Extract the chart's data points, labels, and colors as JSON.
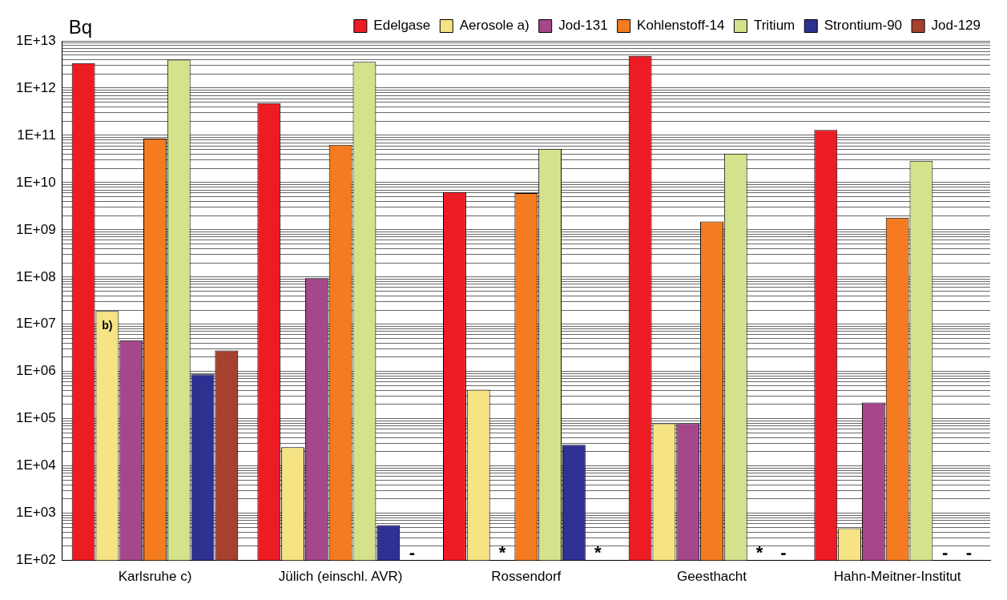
{
  "chart_data": {
    "type": "bar",
    "ylabel": "Bq",
    "log": true,
    "grid": "y",
    "legend": "top",
    "categories": [
      "Karlsruhe c)",
      "Jülich (einschl. AVR)",
      "Rossendorf",
      "Geesthacht",
      "Hahn-Meitner-Institut"
    ],
    "series": [
      {
        "name": "Edelgase",
        "color": "#ed1c24",
        "values": [
          3400000000000.0,
          480000000000.0,
          6300000000.0,
          4800000000000.0,
          130000000000.0
        ]
      },
      {
        "name": "Aerosole a)",
        "color": "#f5e384",
        "values": [
          19000000.0,
          25000.0,
          410000.0,
          80000.0,
          480
        ],
        "value_labels": [
          "b)",
          null,
          null,
          null,
          null
        ]
      },
      {
        "name": "Jod-131",
        "color": "#a5478a",
        "values": [
          4600000.0,
          95000000.0,
          null,
          80000.0,
          220000.0
        ],
        "value_labels": [
          null,
          null,
          "*",
          null,
          null
        ]
      },
      {
        "name": "Kohlenstoff-14",
        "color": "#f47b20",
        "values": [
          85000000000.0,
          63000000000.0,
          6000000000.0,
          1500000000.0,
          1800000000.0
        ]
      },
      {
        "name": "Tritium",
        "color": "#d4e28c",
        "values": [
          4000000000000.0,
          3600000000000.0,
          52000000000.0,
          41000000000.0,
          29000000000.0
        ]
      },
      {
        "name": "Strontium-90",
        "color": "#2e3192",
        "values": [
          870000.0,
          560,
          28000.0,
          null,
          null
        ],
        "value_labels": [
          null,
          null,
          null,
          "*",
          "-"
        ]
      },
      {
        "name": "Jod-129",
        "color": "#a6402f",
        "values": [
          2800000.0,
          null,
          null,
          null,
          null
        ],
        "value_labels": [
          null,
          "-",
          "*",
          "-",
          "-"
        ]
      }
    ],
    "ylim": [
      100,
      10000000000000.0
    ],
    "yticks": [
      {
        "value": 100,
        "label": "1E+02"
      },
      {
        "value": 200,
        "label": null
      },
      {
        "value": 300,
        "label": null
      },
      {
        "value": 400,
        "label": null
      },
      {
        "value": 500,
        "label": null
      },
      {
        "value": 600,
        "label": null
      },
      {
        "value": 700,
        "label": null
      },
      {
        "value": 800,
        "label": null
      },
      {
        "value": 900,
        "label": null
      },
      {
        "value": 1000,
        "label": "1E+03"
      },
      {
        "value": 2000,
        "label": null
      },
      {
        "value": 3000,
        "label": null
      },
      {
        "value": 4000,
        "label": null
      },
      {
        "value": 5000,
        "label": null
      },
      {
        "value": 6000,
        "label": null
      },
      {
        "value": 7000,
        "label": null
      },
      {
        "value": 8000,
        "label": null
      },
      {
        "value": 9000,
        "label": null
      },
      {
        "value": 10000.0,
        "label": "1E+04"
      },
      {
        "value": 20000.0,
        "label": null
      },
      {
        "value": 30000.0,
        "label": null
      },
      {
        "value": 40000.0,
        "label": null
      },
      {
        "value": 50000.0,
        "label": null
      },
      {
        "value": 60000.0,
        "label": null
      },
      {
        "value": 70000.0,
        "label": null
      },
      {
        "value": 80000.0,
        "label": null
      },
      {
        "value": 90000.0,
        "label": null
      },
      {
        "value": 100000.0,
        "label": "1E+05"
      },
      {
        "value": 200000.0,
        "label": null
      },
      {
        "value": 300000.0,
        "label": null
      },
      {
        "value": 400000.0,
        "label": null
      },
      {
        "value": 500000.0,
        "label": null
      },
      {
        "value": 600000.0,
        "label": null
      },
      {
        "value": 700000.0,
        "label": null
      },
      {
        "value": 800000.0,
        "label": null
      },
      {
        "value": 900000.0,
        "label": null
      },
      {
        "value": 1000000.0,
        "label": "1E+06"
      },
      {
        "value": 2000000.0,
        "label": null
      },
      {
        "value": 3000000.0,
        "label": null
      },
      {
        "value": 4000000.0,
        "label": null
      },
      {
        "value": 5000000.0,
        "label": null
      },
      {
        "value": 6000000.0,
        "label": null
      },
      {
        "value": 7000000.0,
        "label": null
      },
      {
        "value": 8000000.0,
        "label": null
      },
      {
        "value": 9000000.0,
        "label": null
      },
      {
        "value": 10000000.0,
        "label": "1E+07"
      },
      {
        "value": 20000000.0,
        "label": null
      },
      {
        "value": 30000000.0,
        "label": null
      },
      {
        "value": 40000000.0,
        "label": null
      },
      {
        "value": 50000000.0,
        "label": null
      },
      {
        "value": 60000000.0,
        "label": null
      },
      {
        "value": 70000000.0,
        "label": null
      },
      {
        "value": 80000000.0,
        "label": null
      },
      {
        "value": 90000000.0,
        "label": null
      },
      {
        "value": 100000000.0,
        "label": "1E+08"
      },
      {
        "value": 200000000.0,
        "label": null
      },
      {
        "value": 300000000.0,
        "label": null
      },
      {
        "value": 400000000.0,
        "label": null
      },
      {
        "value": 500000000.0,
        "label": null
      },
      {
        "value": 600000000.0,
        "label": null
      },
      {
        "value": 700000000.0,
        "label": null
      },
      {
        "value": 800000000.0,
        "label": null
      },
      {
        "value": 900000000.0,
        "label": null
      },
      {
        "value": 1000000000.0,
        "label": "1E+09"
      },
      {
        "value": 2000000000.0,
        "label": null
      },
      {
        "value": 3000000000.0,
        "label": null
      },
      {
        "value": 4000000000.0,
        "label": null
      },
      {
        "value": 5000000000.0,
        "label": null
      },
      {
        "value": 6000000000.0,
        "label": null
      },
      {
        "value": 7000000000.0,
        "label": null
      },
      {
        "value": 8000000000.0,
        "label": null
      },
      {
        "value": 9000000000.0,
        "label": null
      },
      {
        "value": 10000000000.0,
        "label": "1E+10"
      },
      {
        "value": 20000000000.0,
        "label": null
      },
      {
        "value": 30000000000.0,
        "label": null
      },
      {
        "value": 40000000000.0,
        "label": null
      },
      {
        "value": 50000000000.0,
        "label": null
      },
      {
        "value": 60000000000.0,
        "label": null
      },
      {
        "value": 70000000000.0,
        "label": null
      },
      {
        "value": 80000000000.0,
        "label": null
      },
      {
        "value": 90000000000.0,
        "label": null
      },
      {
        "value": 100000000000.0,
        "label": "1E+11"
      },
      {
        "value": 200000000000.0,
        "label": null
      },
      {
        "value": 300000000000.0,
        "label": null
      },
      {
        "value": 400000000000.0,
        "label": null
      },
      {
        "value": 500000000000.0,
        "label": null
      },
      {
        "value": 600000000000.0,
        "label": null
      },
      {
        "value": 700000000000.0,
        "label": null
      },
      {
        "value": 800000000000.0,
        "label": null
      },
      {
        "value": 900000000000.0,
        "label": null
      },
      {
        "value": 1000000000000.0,
        "label": "1E+12"
      },
      {
        "value": 2000000000000.0,
        "label": null
      },
      {
        "value": 3000000000000.0,
        "label": null
      },
      {
        "value": 4000000000000.0,
        "label": null
      },
      {
        "value": 5000000000000.0,
        "label": null
      },
      {
        "value": 6000000000000.0,
        "label": null
      },
      {
        "value": 7000000000000.0,
        "label": null
      },
      {
        "value": 8000000000000.0,
        "label": null
      },
      {
        "value": 9000000000000.0,
        "label": null
      },
      {
        "value": 10000000000000.0,
        "label": "1E+13"
      }
    ]
  }
}
